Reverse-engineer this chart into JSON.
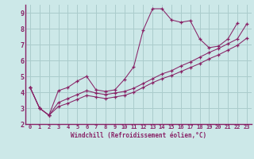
{
  "background_color": "#cce8e8",
  "grid_color": "#aacccc",
  "line_color": "#882266",
  "title": "Windchill (Refroidissement éolien,°C)",
  "xlim": [
    -0.5,
    23.5
  ],
  "ylim": [
    2,
    9.5
  ],
  "xticks": [
    0,
    1,
    2,
    3,
    4,
    5,
    6,
    7,
    8,
    9,
    10,
    11,
    12,
    13,
    14,
    15,
    16,
    17,
    18,
    19,
    20,
    21,
    22,
    23
  ],
  "yticks": [
    2,
    3,
    4,
    5,
    6,
    7,
    8,
    9
  ],
  "line1_x": [
    0,
    1,
    2,
    3,
    4,
    5,
    6,
    7,
    8,
    9,
    10,
    11,
    12,
    13,
    14,
    15,
    16,
    17,
    18,
    19,
    20,
    21,
    22
  ],
  "line1_y": [
    4.3,
    3.0,
    2.55,
    4.1,
    4.3,
    4.7,
    5.0,
    4.15,
    4.05,
    4.15,
    4.8,
    5.6,
    7.9,
    9.25,
    9.25,
    8.55,
    8.4,
    8.5,
    7.35,
    6.8,
    6.9,
    7.35,
    8.35
  ],
  "line2_x": [
    0,
    1,
    2,
    3,
    4,
    5,
    6,
    7,
    8,
    9,
    10,
    11,
    12,
    13,
    14,
    15,
    16,
    17,
    18,
    19,
    20,
    21,
    22,
    23
  ],
  "line2_y": [
    4.3,
    3.0,
    2.55,
    3.35,
    3.6,
    3.85,
    4.1,
    3.95,
    3.85,
    3.95,
    4.05,
    4.25,
    4.55,
    4.85,
    5.15,
    5.35,
    5.65,
    5.9,
    6.2,
    6.5,
    6.75,
    7.05,
    7.35,
    8.3
  ],
  "line3_x": [
    0,
    1,
    2,
    3,
    4,
    5,
    6,
    7,
    8,
    9,
    10,
    11,
    12,
    13,
    14,
    15,
    16,
    17,
    18,
    19,
    20,
    21,
    22,
    23
  ],
  "line3_y": [
    4.3,
    3.0,
    2.55,
    3.1,
    3.3,
    3.55,
    3.8,
    3.7,
    3.6,
    3.7,
    3.8,
    4.0,
    4.3,
    4.6,
    4.85,
    5.05,
    5.3,
    5.55,
    5.8,
    6.1,
    6.35,
    6.65,
    6.95,
    7.4
  ]
}
